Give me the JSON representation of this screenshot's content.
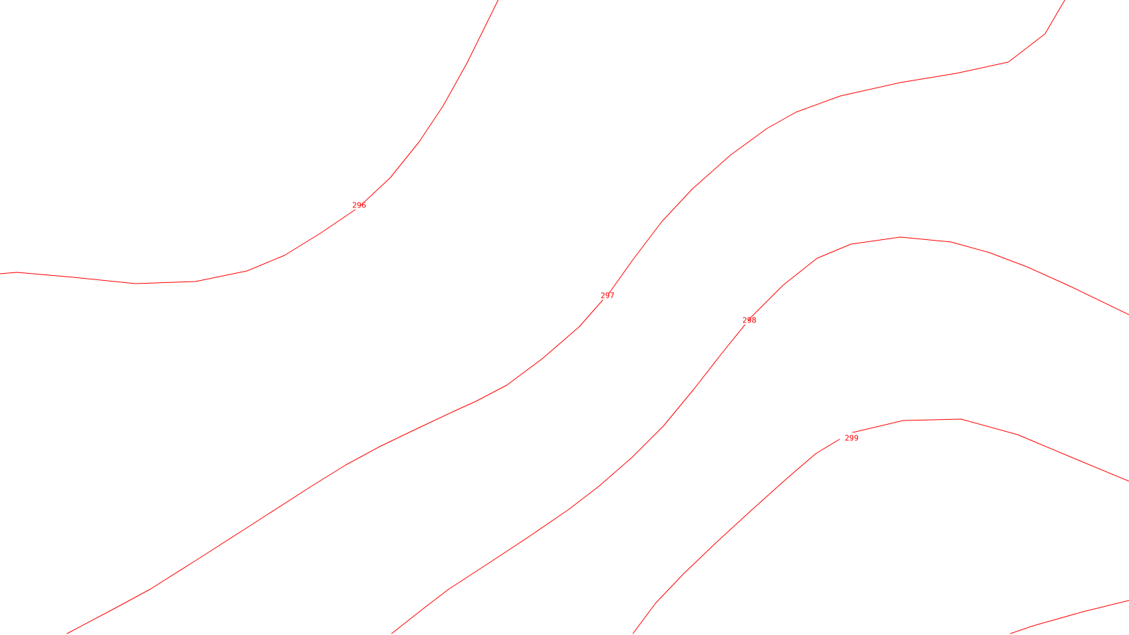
{
  "map": {
    "type": "contour-map",
    "background_color": "#ffffff",
    "contour_color": "#ff0000",
    "contours": [
      {
        "id": "296",
        "label": "296"
      },
      {
        "id": "297",
        "label": "297"
      },
      {
        "id": "298",
        "label": "298"
      },
      {
        "id": "299",
        "label": "299"
      },
      {
        "id": "300",
        "label": ""
      }
    ]
  }
}
